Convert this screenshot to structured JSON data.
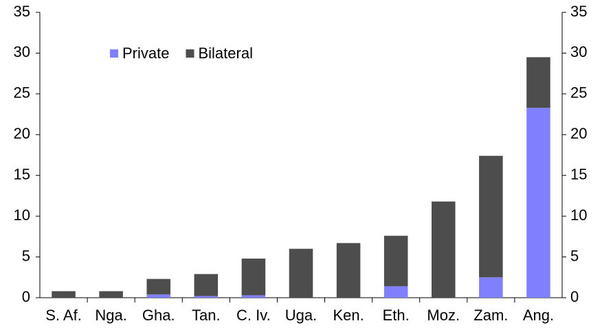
{
  "chart_data": {
    "type": "stacked-bar",
    "categories": [
      "S. Af.",
      "Nga.",
      "Gha.",
      "Tan.",
      "C. Iv.",
      "Uga.",
      "Ken.",
      "Eth.",
      "Moz.",
      "Zam.",
      "Ang."
    ],
    "series": [
      {
        "name": "Private",
        "color": "#8080ff",
        "values": [
          0,
          0,
          0.4,
          0.2,
          0.3,
          0,
          0,
          1.4,
          0,
          2.5,
          23.3
        ]
      },
      {
        "name": "Bilateral",
        "color": "#4d4d4d",
        "values": [
          0.8,
          0.8,
          1.9,
          2.7,
          4.5,
          6.0,
          6.7,
          6.2,
          11.8,
          14.9,
          6.2
        ]
      }
    ],
    "ylim": [
      0,
      35
    ],
    "yticks": [
      0,
      5,
      10,
      15,
      20,
      25,
      30,
      35
    ],
    "y2lim": [
      0,
      35
    ],
    "y2ticks": [
      0,
      5,
      10,
      15,
      20,
      25,
      30,
      35
    ],
    "legend": "upper-left",
    "grid": false
  }
}
